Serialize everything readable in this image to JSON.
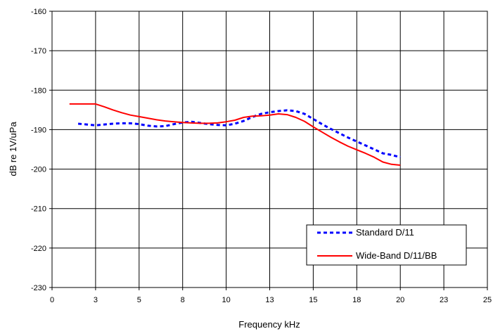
{
  "chart_data": {
    "type": "line",
    "title": "",
    "xlabel": "Frequency kHz",
    "ylabel": "dB re 1V/uPa",
    "xlim": [
      0,
      25
    ],
    "ylim": [
      -230,
      -160
    ],
    "grid": true,
    "legend_position": "bottom-right",
    "x_ticks": [
      0,
      2.5,
      5,
      7.5,
      10,
      12.5,
      15,
      17.5,
      20,
      22.5,
      25
    ],
    "x_tick_labels": [
      "0",
      "3",
      "5",
      "8",
      "10",
      "13",
      "15",
      "18",
      "20",
      "23",
      "25"
    ],
    "y_ticks": [
      -160,
      -170,
      -180,
      -190,
      -200,
      -210,
      -220,
      -230
    ],
    "y_tick_labels": [
      "-160",
      "-170",
      "-180",
      "-190",
      "-200",
      "-210",
      "-220",
      "-230"
    ],
    "series": [
      {
        "name": "Standard D/11",
        "color": "#0000ff",
        "style": "dotted",
        "x": [
          1.5,
          2.0,
          2.5,
          3.0,
          3.5,
          4.0,
          4.5,
          5.0,
          5.5,
          6.0,
          6.5,
          7.0,
          7.5,
          8.0,
          8.5,
          9.0,
          9.5,
          10.0,
          10.5,
          11.0,
          11.5,
          12.0,
          12.5,
          13.0,
          13.5,
          14.0,
          14.5,
          15.0,
          15.5,
          16.0,
          16.5,
          17.0,
          17.5,
          18.0,
          18.5,
          19.0,
          19.5,
          20.0
        ],
        "y": [
          -188.5,
          -188.7,
          -188.9,
          -188.7,
          -188.5,
          -188.4,
          -188.4,
          -188.6,
          -189.0,
          -189.2,
          -189.1,
          -188.6,
          -188.2,
          -188.0,
          -188.3,
          -188.6,
          -188.8,
          -188.9,
          -188.5,
          -187.8,
          -186.8,
          -186.0,
          -185.6,
          -185.3,
          -185.1,
          -185.3,
          -186.0,
          -187.3,
          -188.6,
          -189.8,
          -190.9,
          -192.0,
          -193.0,
          -194.0,
          -195.0,
          -196.0,
          -196.4,
          -197.0
        ]
      },
      {
        "name": "Wide-Band D/11/BB",
        "color": "#ff0000",
        "style": "solid",
        "x": [
          1.0,
          1.5,
          2.0,
          2.5,
          3.0,
          3.5,
          4.0,
          4.5,
          5.0,
          5.5,
          6.0,
          6.5,
          7.0,
          7.5,
          8.0,
          8.5,
          9.0,
          9.5,
          10.0,
          10.5,
          11.0,
          11.5,
          12.0,
          12.5,
          13.0,
          13.5,
          14.0,
          14.5,
          15.0,
          15.5,
          16.0,
          16.5,
          17.0,
          17.5,
          18.0,
          18.5,
          19.0,
          19.5,
          20.0
        ],
        "y": [
          -183.5,
          -183.5,
          -183.5,
          -183.5,
          -184.2,
          -185.0,
          -185.7,
          -186.3,
          -186.7,
          -187.1,
          -187.5,
          -187.8,
          -188.0,
          -188.2,
          -188.3,
          -188.4,
          -188.4,
          -188.3,
          -188.0,
          -187.6,
          -186.9,
          -186.6,
          -186.5,
          -186.3,
          -186.0,
          -186.2,
          -186.9,
          -187.9,
          -189.3,
          -190.6,
          -191.9,
          -193.1,
          -194.2,
          -195.1,
          -196.0,
          -197.0,
          -198.2,
          -198.8,
          -199.0
        ]
      }
    ]
  }
}
